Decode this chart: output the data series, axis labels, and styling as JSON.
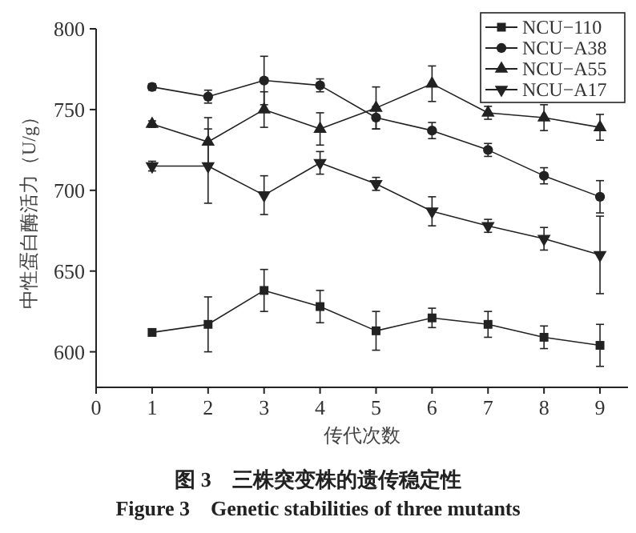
{
  "chart_data": {
    "type": "line",
    "xlabel": "传代次数",
    "ylabel": "中性蛋白酶活力（U/g）",
    "x": [
      1,
      2,
      3,
      4,
      5,
      6,
      7,
      8,
      9
    ],
    "xlim": [
      0,
      9.5
    ],
    "xticks": [
      0,
      1,
      2,
      3,
      4,
      5,
      6,
      7,
      8,
      9
    ],
    "ylim": [
      578,
      800
    ],
    "yticks": [
      600,
      650,
      700,
      750,
      800
    ],
    "legend": "top right",
    "grid": false,
    "series": [
      {
        "name": "NCU−110",
        "color": "#222222",
        "marker": "square",
        "values": [
          612,
          617,
          638,
          628,
          613,
          621,
          617,
          609,
          604
        ],
        "errors": [
          2,
          17,
          13,
          10,
          12,
          6,
          8,
          7,
          13
        ]
      },
      {
        "name": "NCU−A38",
        "color": "#222222",
        "marker": "circle",
        "values": [
          764,
          758,
          768,
          765,
          745,
          737,
          725,
          709,
          696
        ],
        "errors": [
          2,
          4,
          15,
          4,
          7,
          5,
          4,
          5,
          10
        ]
      },
      {
        "name": "NCU−A55",
        "color": "#222222",
        "marker": "triangle",
        "values": [
          741,
          730,
          750,
          738,
          751,
          766,
          748,
          745,
          739
        ],
        "errors": [
          2,
          15,
          11,
          10,
          13,
          11,
          4,
          8,
          8
        ]
      },
      {
        "name": "NCU−A17",
        "color": "#222222",
        "marker": "triangle-down",
        "values": [
          715,
          715,
          697,
          717,
          704,
          687,
          678,
          670,
          660
        ],
        "errors": [
          3,
          23,
          12,
          7,
          4,
          9,
          4,
          7,
          24
        ]
      }
    ],
    "annotations": [
      "图 3　三株突变株的遗传稳定性",
      "Figure 3　Genetic stabilities of three mutants"
    ]
  }
}
